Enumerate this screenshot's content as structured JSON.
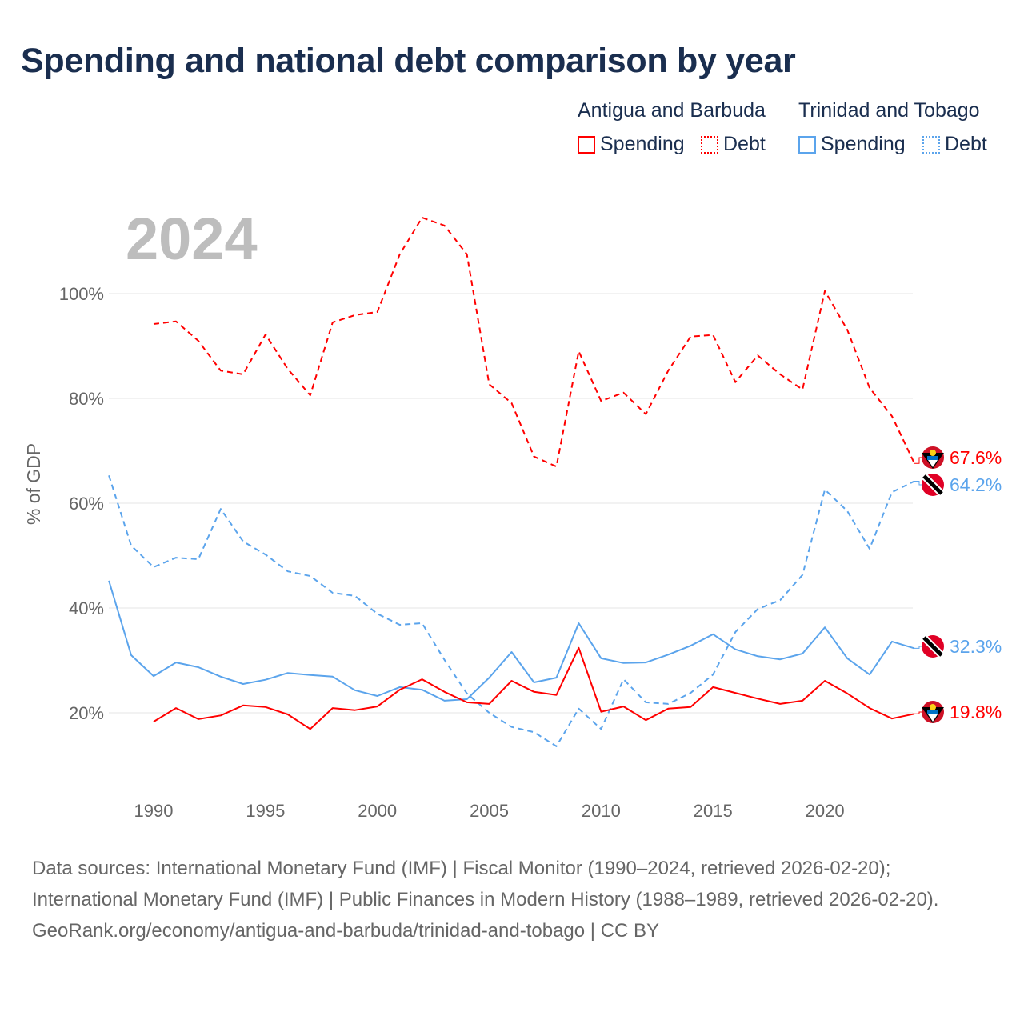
{
  "title": "Spending and national debt comparison by year",
  "legend": {
    "groups": [
      {
        "name": "Antigua and Barbuda",
        "items": [
          {
            "label": "Spending",
            "style": "solid",
            "color": "#ff0000"
          },
          {
            "label": "Debt",
            "style": "dotted",
            "color": "#ff0000"
          }
        ]
      },
      {
        "name": "Trinidad and Tobago",
        "items": [
          {
            "label": "Spending",
            "style": "solid",
            "color": "#5ba4ec"
          },
          {
            "label": "Debt",
            "style": "dotted",
            "color": "#5ba4ec"
          }
        ]
      }
    ]
  },
  "footer": {
    "sources": "Data sources: International Monetary Fund (IMF) | Fiscal Monitor (1990–2024, retrieved 2026-02-20); International Monetary Fund (IMF) | Public Finances in Modern History (1988–1989, retrieved 2026-02-20).",
    "credit": "GeoRank.org/economy/antigua-and-barbuda/trinidad-and-tobago | CC BY"
  },
  "chart_data": {
    "type": "line",
    "title": "Spending and national debt comparison by year",
    "year_label": "2024",
    "ylabel": "% of GDP",
    "xlabel": "",
    "xlim": [
      1988,
      2024
    ],
    "ylim": [
      0,
      115
    ],
    "x_ticks": [
      1990,
      1995,
      2000,
      2005,
      2010,
      2015,
      2020
    ],
    "y_ticks": [
      {
        "v": 20,
        "label": "20%"
      },
      {
        "v": 40,
        "label": "40%"
      },
      {
        "v": 60,
        "label": "60%"
      },
      {
        "v": 80,
        "label": "80%"
      },
      {
        "v": 100,
        "label": "100%"
      }
    ],
    "grid": true,
    "series": [
      {
        "name": "Antigua and Barbuda Debt",
        "color": "#ff0000",
        "dash": true,
        "start": 1990,
        "end_label": "67.6%",
        "values": [
          94.2,
          94.7,
          91,
          85.3,
          84.6,
          92.2,
          85.6,
          80.6,
          94.5,
          95.9,
          96.5,
          107.5,
          114.5,
          113,
          107.5,
          82.7,
          79.1,
          68.9,
          67,
          89,
          79.5,
          81.1,
          77,
          85.3,
          91.8,
          92.1,
          83.1,
          88.2,
          84.6,
          81.7,
          100.5,
          93.1,
          82,
          76.6,
          67.6
        ]
      },
      {
        "name": "Trinidad and Tobago Debt",
        "color": "#5ba4ec",
        "dash": true,
        "start": 1988,
        "end_label": "64.2%",
        "values": [
          65.3,
          51.9,
          47.8,
          49.6,
          49.3,
          58.9,
          52.7,
          50.2,
          47,
          46.1,
          42.9,
          42.3,
          38.9,
          36.8,
          37.1,
          30.1,
          23.7,
          20,
          17.3,
          16.3,
          13.6,
          20.8,
          16.9,
          26.4,
          22,
          21.7,
          23.8,
          27.3,
          35.4,
          39.8,
          41.5,
          46.3,
          62.6,
          58.5,
          51.3,
          62.1,
          64.2
        ]
      },
      {
        "name": "Trinidad and Tobago Spending",
        "color": "#5ba4ec",
        "dash": false,
        "start": 1988,
        "end_label": "32.3%",
        "values": [
          45.2,
          31,
          27,
          29.6,
          28.7,
          26.9,
          25.5,
          26.3,
          27.6,
          27.2,
          26.9,
          24.3,
          23.2,
          24.9,
          24.4,
          22.3,
          22.6,
          26.7,
          31.6,
          25.8,
          26.7,
          37.1,
          30.4,
          29.5,
          29.6,
          31.1,
          32.8,
          35,
          32.1,
          30.8,
          30.2,
          31.3,
          36.3,
          30.4,
          27.3,
          33.6,
          32.3
        ]
      },
      {
        "name": "Antigua and Barbuda Spending",
        "color": "#ff0000",
        "dash": false,
        "start": 1990,
        "end_label": "19.8%",
        "values": [
          18.3,
          20.9,
          18.8,
          19.5,
          21.4,
          21.1,
          19.7,
          16.9,
          20.9,
          20.5,
          21.2,
          24.4,
          26.4,
          24,
          22,
          21.7,
          26.1,
          24,
          23.4,
          32.4,
          20.2,
          21.2,
          18.6,
          20.8,
          21.1,
          24.9,
          23.8,
          22.7,
          21.7,
          22.3,
          26.1,
          23.7,
          20.9,
          18.9,
          19.8
        ]
      }
    ]
  }
}
